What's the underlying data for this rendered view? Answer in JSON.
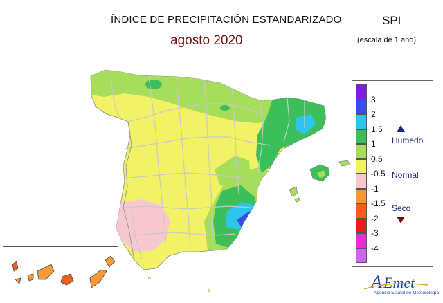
{
  "header": {
    "title": "ÍNDICE DE PRECIPITACIÓN ESTANDARIZADO",
    "subtitle": "agosto 2020",
    "index_name": "SPI",
    "scale": "(escala de 1 ano)"
  },
  "legend": {
    "classes": [
      {
        "label": "3",
        "color": "#7a1fd6"
      },
      {
        "label": "2",
        "color": "#3a4ee0"
      },
      {
        "label": "1.5",
        "color": "#2ec4ee"
      },
      {
        "label": "1",
        "color": "#3cbf5a"
      },
      {
        "label": "0.5",
        "color": "#a6dd5a"
      },
      {
        "label": "-0.5",
        "color": "#f2f266"
      },
      {
        "label": "-1",
        "color": "#f8c8d0"
      },
      {
        "label": "-1.5",
        "color": "#f59a35"
      },
      {
        "label": "-2",
        "color": "#f25e1e"
      },
      {
        "label": "-3",
        "color": "#f01a1a"
      },
      {
        "label": "-4",
        "color": "#e62ed8"
      },
      {
        "label": "",
        "color": "#cc66ee"
      }
    ],
    "categories": {
      "wet": "Humedo",
      "normal": "Normal",
      "dry": "Seco"
    },
    "wet_arrow_color": "#1a2a8a",
    "dry_arrow_color": "#7a0a0a"
  },
  "logo": {
    "name": "AEmet",
    "caption": "Agencia Estatal de Meteorología"
  },
  "colors": {
    "yellow": "#f2f266",
    "light_green": "#a6dd5a",
    "green": "#3cbf5a",
    "cyan": "#2ec4ee",
    "blue": "#3a4ee0",
    "pink": "#f8c8d0",
    "orange": "#f59a35",
    "border": "#c8c8c8"
  }
}
